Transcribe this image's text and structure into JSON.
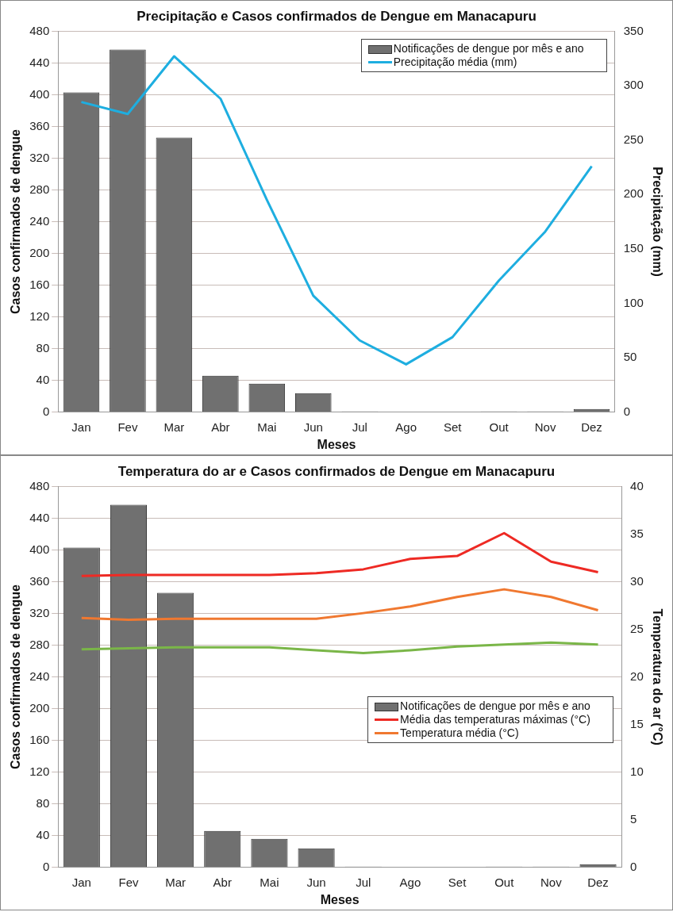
{
  "chart_data": [
    {
      "type": "bar",
      "title": "Precipitação e Casos confirmados de Dengue em Manacapuru",
      "xlabel": "Meses",
      "ylabel": "Casos confirmados de dengue",
      "y2label": "Precipitação (mm)",
      "categories": [
        "Jan",
        "Fev",
        "Mar",
        "Abr",
        "Mai",
        "Jun",
        "Jul",
        "Ago",
        "Set",
        "Out",
        "Nov",
        "Dez"
      ],
      "series": [
        {
          "name": "Notificações de dengue por mês e ano",
          "color": "#707070",
          "values": [
            403,
            457,
            346,
            46,
            36,
            24,
            1,
            0,
            0,
            1,
            1,
            4
          ]
        },
        {
          "name": "Precipitação média (mm)",
          "type": "line",
          "axis": "y2",
          "color": "#1eaee0",
          "values": [
            285,
            274,
            327,
            288,
            195,
            107,
            66,
            44,
            69,
            121,
            166,
            226
          ]
        }
      ],
      "ylim": [
        0,
        480
      ],
      "yticks": [
        0,
        40,
        80,
        120,
        160,
        200,
        240,
        280,
        320,
        360,
        400,
        440,
        480
      ],
      "y2lim": [
        0,
        350
      ],
      "y2ticks": [
        0,
        50,
        100,
        150,
        200,
        250,
        300,
        350
      ],
      "grid": "y",
      "legend": "top right",
      "marker": "none",
      "line_style": "solid"
    },
    {
      "type": "bar",
      "title": "Temperatura do ar e Casos confirmados de Dengue em Manacapuru",
      "xlabel": "Meses",
      "ylabel": "Casos confirmados de dengue",
      "y2label": "Temperatura do ar (°C)",
      "categories": [
        "Jan",
        "Fev",
        "Mar",
        "Abr",
        "Mai",
        "Jun",
        "Jul",
        "Ago",
        "Set",
        "Out",
        "Nov",
        "Dez"
      ],
      "series": [
        {
          "name": "Notificações de dengue por mês e ano",
          "color": "#707070",
          "values": [
            403,
            457,
            346,
            46,
            36,
            24,
            1,
            0,
            0,
            1,
            1,
            4
          ]
        },
        {
          "name": "Média das temperaturas máximas (°C)",
          "type": "line",
          "axis": "y2",
          "color": "#ee2a24",
          "values": [
            30.6,
            30.7,
            30.7,
            30.7,
            30.7,
            30.9,
            31.3,
            32.4,
            32.7,
            35.1,
            32.1,
            31.0
          ]
        },
        {
          "name": "Temperatura média (°C)",
          "type": "line",
          "axis": "y2",
          "color": "#f07830",
          "values": [
            26.2,
            26.0,
            26.1,
            26.1,
            26.1,
            26.1,
            26.7,
            27.4,
            28.4,
            29.2,
            28.4,
            27.0
          ]
        },
        {
          "type": "line",
          "axis": "y2",
          "color": "#7ab648",
          "values": [
            22.9,
            23.0,
            23.1,
            23.1,
            23.1,
            22.8,
            22.5,
            22.8,
            23.2,
            23.4,
            23.6,
            23.4
          ]
        }
      ],
      "ylim": [
        0,
        480
      ],
      "yticks": [
        0,
        40,
        80,
        120,
        160,
        200,
        240,
        280,
        320,
        360,
        400,
        440,
        480
      ],
      "y2lim": [
        0,
        40
      ],
      "y2ticks": [
        0,
        5,
        10,
        15,
        20,
        25,
        30,
        35,
        40
      ],
      "grid": "y",
      "legend": "right",
      "marker": "none",
      "line_style": "solid"
    }
  ]
}
